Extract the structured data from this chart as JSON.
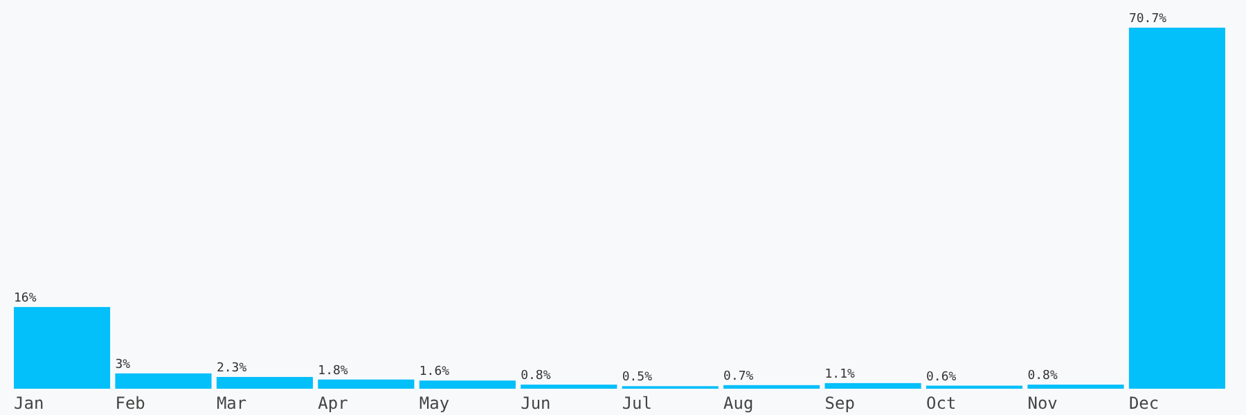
{
  "chart_data": {
    "type": "bar",
    "categories": [
      "Jan",
      "Feb",
      "Mar",
      "Apr",
      "May",
      "Jun",
      "Jul",
      "Aug",
      "Sep",
      "Oct",
      "Nov",
      "Dec"
    ],
    "values": [
      16,
      3,
      2.3,
      1.8,
      1.6,
      0.8,
      0.5,
      0.7,
      1.1,
      0.6,
      0.8,
      70.7
    ],
    "value_labels": [
      "16%",
      "3%",
      "2.3%",
      "1.8%",
      "1.6%",
      "0.8%",
      "0.5%",
      "0.7%",
      "1.1%",
      "0.6%",
      "0.8%",
      "70.7%"
    ],
    "color": "#03bffa",
    "grid": false,
    "legend": false
  }
}
